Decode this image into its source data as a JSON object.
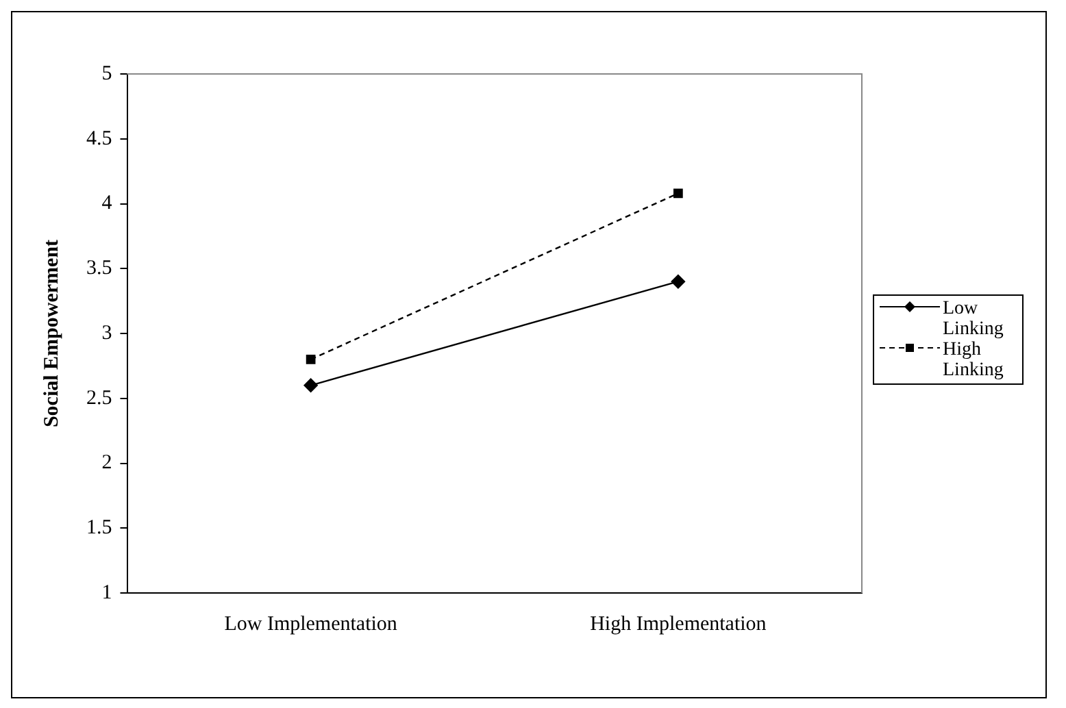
{
  "chart_data": {
    "type": "line",
    "ylabel": "Social Empowerment",
    "categories": [
      "Low Implementation",
      "High Implementation"
    ],
    "series": [
      {
        "name": "Low Linking",
        "color": "#000000",
        "values": [
          2.6,
          3.4
        ],
        "marker": "diamond",
        "line_style": "solid"
      },
      {
        "name": "High Linking",
        "color": "#000000",
        "values": [
          2.8,
          4.08
        ],
        "marker": "square",
        "line_style": "dashed"
      }
    ],
    "ylim": [
      1,
      5
    ],
    "yticks": [
      1,
      1.5,
      2,
      2.5,
      3,
      3.5,
      4,
      4.5,
      5
    ],
    "grid": false,
    "legend": "right"
  }
}
